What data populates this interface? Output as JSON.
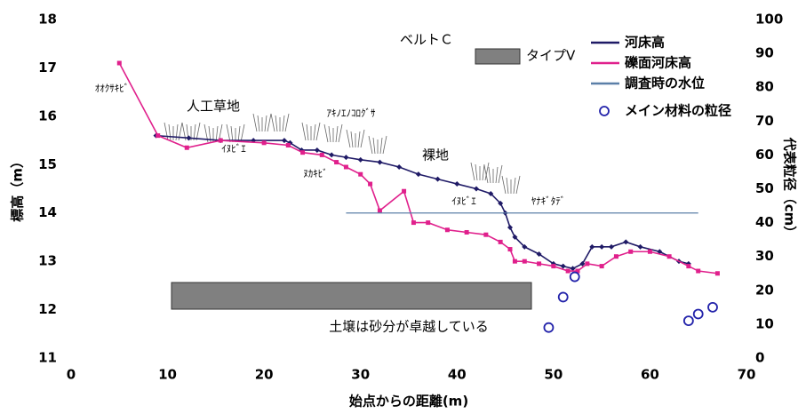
{
  "chart_data": {
    "type": "line",
    "xlabel": "始点からの距離(m)",
    "ylabel": "標高（m）",
    "y2label": "代表粒径（cm）",
    "xlim": [
      0,
      70
    ],
    "xticks": [
      0,
      10,
      20,
      30,
      40,
      50,
      60,
      70
    ],
    "ylim": [
      11,
      18
    ],
    "yticks": [
      11,
      12,
      13,
      14,
      15,
      16,
      17,
      18
    ],
    "y2lim": [
      0,
      100
    ],
    "y2ticks": [
      0,
      10,
      20,
      30,
      40,
      50,
      60,
      70,
      80,
      90,
      100
    ],
    "legend": "upper right",
    "annotations": [
      "ベルトＣ",
      "タイプⅤ",
      "人工草地",
      "ｲﾇﾋﾞｴ",
      "ｱｷﾉｴﾉｺﾛｸﾞｻ",
      "ﾇｶｷﾋﾞ",
      "裸地",
      "ｲﾇﾋﾞｴ",
      "ﾔﾅｷﾞﾀﾃﾞ",
      "ｵｵｸｻｷﾋﾞ",
      "土壌は砂分が卓越している"
    ],
    "series": [
      {
        "name": "河床高",
        "color": "#1f1a66",
        "marker": "diamond",
        "x": [
          8.8,
          12.2,
          15.5,
          18.9,
          22.1,
          22.7,
          23.9,
          25.5,
          27,
          28.5,
          30,
          32,
          34,
          36,
          38,
          40,
          42,
          43.5,
          44.5,
          45,
          45.5,
          46,
          47,
          48.5,
          50,
          51,
          52,
          53,
          54,
          55,
          56,
          57.5,
          59,
          61,
          63,
          64
        ],
        "values": [
          15.6,
          15.55,
          15.5,
          15.5,
          15.5,
          15.45,
          15.3,
          15.3,
          15.2,
          15.15,
          15.1,
          15.05,
          14.95,
          14.8,
          14.7,
          14.6,
          14.5,
          14.4,
          14.2,
          14.0,
          13.7,
          13.5,
          13.3,
          13.15,
          12.95,
          12.9,
          12.85,
          12.95,
          13.3,
          13.3,
          13.3,
          13.4,
          13.3,
          13.2,
          13.0,
          12.95
        ]
      },
      {
        "name": "礫面河床高",
        "color": "#e0208c",
        "marker": "square",
        "x": [
          5,
          9,
          12,
          15.5,
          20,
          22.5,
          24,
          26,
          27.5,
          28.5,
          30,
          31,
          32,
          34.5,
          35.5,
          37,
          39,
          41,
          43,
          44.5,
          45.5,
          46,
          47,
          48.5,
          50,
          51.5,
          52.5,
          53.5,
          55,
          56.5,
          58,
          60,
          62,
          64,
          65,
          67
        ],
        "values": [
          17.1,
          15.6,
          15.35,
          15.5,
          15.45,
          15.4,
          15.25,
          15.2,
          15.05,
          14.95,
          14.8,
          14.6,
          14.05,
          14.45,
          13.8,
          13.8,
          13.65,
          13.6,
          13.55,
          13.4,
          13.25,
          13.0,
          13.0,
          12.95,
          12.9,
          12.8,
          12.8,
          12.95,
          12.9,
          13.1,
          13.2,
          13.2,
          13.1,
          12.9,
          12.8,
          12.75
        ]
      },
      {
        "name": "調査時の水位",
        "color": "#5b7fa8",
        "marker": "none",
        "x": [
          28.5,
          65
        ],
        "values": [
          14,
          14
        ]
      },
      {
        "name": "メイン材料の粒径",
        "color": "#2222aa",
        "marker": "circle",
        "axis": "y2",
        "x": [
          49.5,
          51,
          52.2,
          64,
          65,
          66.5
        ],
        "values": [
          9,
          18,
          24,
          11,
          13,
          15
        ]
      }
    ]
  }
}
